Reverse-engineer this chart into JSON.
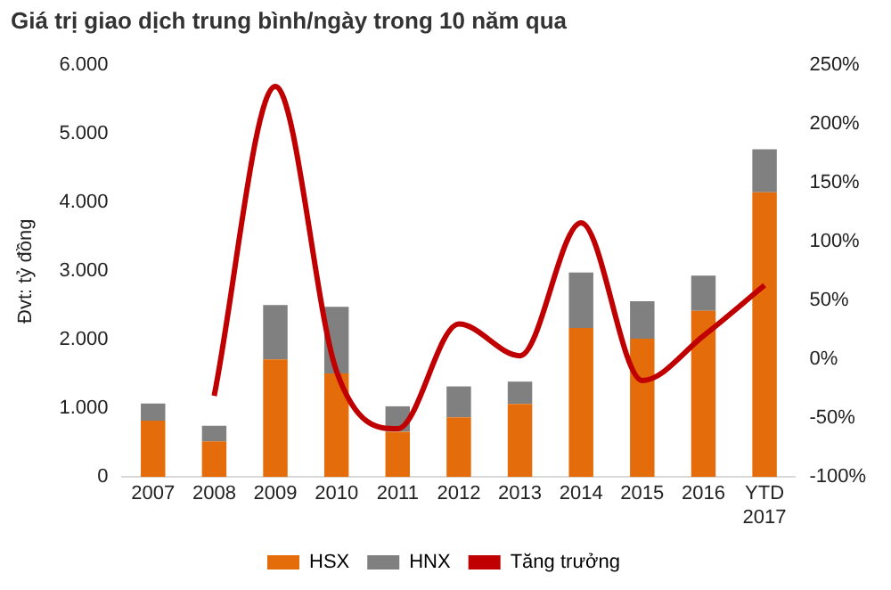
{
  "chart_data": {
    "type": "bar",
    "title": "Giá trị giao dịch trung bình/ngày trong 10 năm qua",
    "ylabel": "Đvt: tỷ đồng",
    "stacked": true,
    "categories": [
      "2007",
      "2008",
      "2009",
      "2010",
      "2011",
      "2012",
      "2013",
      "2014",
      "2015",
      "2016",
      "YTD 2017"
    ],
    "series": [
      {
        "name": "HSX",
        "color": "#e46c0a",
        "values": [
          820,
          520,
          1715,
          1510,
          660,
          870,
          1065,
          2170,
          2015,
          2420,
          4150
        ]
      },
      {
        "name": "HNX",
        "color": "#808080",
        "values": [
          250,
          225,
          790,
          970,
          370,
          450,
          325,
          810,
          545,
          515,
          625
        ]
      },
      {
        "name": "Tăng trưởng",
        "type": "line",
        "axis": "y2",
        "color": "#c00000",
        "values": [
          null,
          -31,
          232,
          -10,
          -59,
          30,
          3,
          116,
          -18,
          20,
          63
        ]
      }
    ],
    "ylim": [
      0,
      6000
    ],
    "yticks": [
      {
        "value": 0,
        "label": "0"
      },
      {
        "value": 1000,
        "label": "1.000"
      },
      {
        "value": 2000,
        "label": "2.000"
      },
      {
        "value": 3000,
        "label": "3.000"
      },
      {
        "value": 4000,
        "label": "4.000"
      },
      {
        "value": 5000,
        "label": "5.000"
      },
      {
        "value": 6000,
        "label": "6.000"
      }
    ],
    "y2lim": [
      -100,
      250
    ],
    "y2ticks": [
      {
        "value": -100,
        "label": "-100%"
      },
      {
        "value": -50,
        "label": "-50%"
      },
      {
        "value": 0,
        "label": "0%"
      },
      {
        "value": 50,
        "label": "50%"
      },
      {
        "value": 100,
        "label": "100%"
      },
      {
        "value": 150,
        "label": "150%"
      },
      {
        "value": 200,
        "label": "200%"
      },
      {
        "value": 250,
        "label": "250%"
      }
    ],
    "grid": false,
    "legend": "bottom",
    "marker": "none"
  }
}
